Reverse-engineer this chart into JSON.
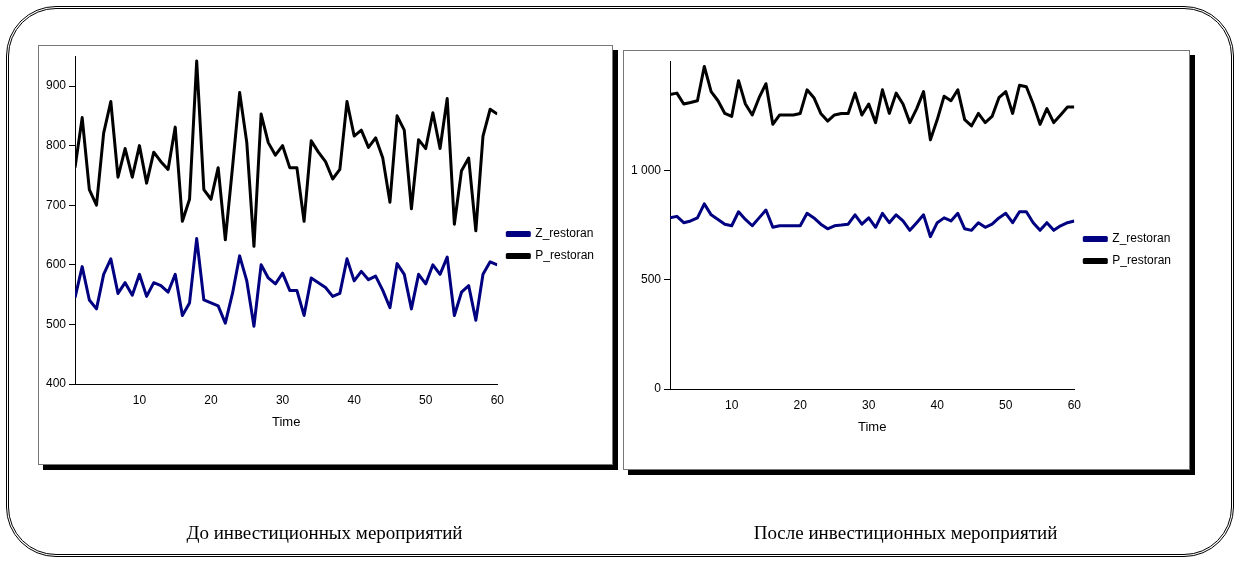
{
  "chart_data": [
    {
      "type": "line",
      "xlabel": "Time",
      "annotations": [
        "До инвестиционных мероприятий"
      ],
      "legend": "right",
      "grid": false,
      "marker": "none",
      "line_style": "solid",
      "x": [
        1,
        2,
        3,
        4,
        5,
        6,
        7,
        8,
        9,
        10,
        11,
        12,
        13,
        14,
        15,
        16,
        17,
        18,
        19,
        20,
        21,
        22,
        23,
        24,
        25,
        26,
        27,
        28,
        29,
        30,
        31,
        32,
        33,
        34,
        35,
        36,
        37,
        38,
        39,
        40,
        41,
        42,
        43,
        44,
        45,
        46,
        47,
        48,
        49,
        50,
        51,
        52,
        53,
        54,
        55,
        56,
        57,
        58,
        59,
        60
      ],
      "xlim": [
        1,
        60
      ],
      "xticks": [
        10,
        20,
        30,
        40,
        50,
        60
      ],
      "ylim": [
        400,
        950
      ],
      "yticks": [
        400,
        500,
        600,
        700,
        800,
        900
      ],
      "series": [
        {
          "name": "Z_restoran",
          "color": "#000080",
          "values": [
            545,
            597,
            541,
            526,
            584,
            610,
            552,
            570,
            549,
            584,
            547,
            570,
            565,
            554,
            584,
            515,
            536,
            644,
            541,
            536,
            531,
            502,
            552,
            615,
            573,
            497,
            600,
            578,
            568,
            586,
            557,
            557,
            515,
            578,
            570,
            562,
            547,
            552,
            610,
            573,
            589,
            575,
            581,
            557,
            528,
            602,
            584,
            526,
            584,
            568,
            600,
            584,
            613,
            515,
            554,
            565,
            507,
            584,
            605,
            600
          ]
        },
        {
          "name": "P_restoran",
          "color": "#000000",
          "values": [
            763,
            847,
            726,
            700,
            821,
            874,
            747,
            795,
            747,
            800,
            737,
            789,
            773,
            760,
            831,
            673,
            710,
            942,
            726,
            710,
            763,
            642,
            763,
            889,
            805,
            631,
            853,
            805,
            784,
            800,
            763,
            763,
            673,
            808,
            789,
            773,
            744,
            760,
            874,
            816,
            826,
            797,
            813,
            779,
            705,
            850,
            826,
            694,
            810,
            795,
            855,
            795,
            879,
            668,
            758,
            779,
            657,
            816,
            861,
            853
          ]
        }
      ]
    },
    {
      "type": "line",
      "xlabel": "Time",
      "annotations": [
        "После инвестиционных мероприятий"
      ],
      "legend": "right",
      "grid": false,
      "marker": "none",
      "line_style": "solid",
      "x": [
        1,
        2,
        3,
        4,
        5,
        6,
        7,
        8,
        9,
        10,
        11,
        12,
        13,
        14,
        15,
        16,
        17,
        18,
        19,
        20,
        21,
        22,
        23,
        24,
        25,
        26,
        27,
        28,
        29,
        30,
        31,
        32,
        33,
        34,
        35,
        36,
        37,
        38,
        39,
        40,
        41,
        42,
        43,
        44,
        45,
        46,
        47,
        48,
        49,
        50,
        51,
        52,
        53,
        54,
        55,
        56,
        57,
        58,
        59,
        60
      ],
      "xlim": [
        1,
        60
      ],
      "xticks": [
        10,
        20,
        30,
        40,
        50,
        60
      ],
      "ylim": [
        0,
        1500
      ],
      "yticks": [
        0,
        500,
        {
          "value": 1000,
          "label": "1 000"
        }
      ],
      "series": [
        {
          "name": "Z_restoran",
          "color": "#000080",
          "values": [
            783,
            790,
            761,
            769,
            783,
            847,
            797,
            776,
            754,
            747,
            811,
            776,
            747,
            783,
            819,
            740,
            747,
            747,
            747,
            747,
            804,
            783,
            754,
            733,
            747,
            750,
            754,
            797,
            754,
            783,
            740,
            804,
            761,
            797,
            769,
            726,
            761,
            797,
            697,
            761,
            783,
            769,
            804,
            733,
            726,
            761,
            740,
            754,
            783,
            804,
            761,
            811,
            811,
            761,
            726,
            761,
            726,
            747,
            761,
            769
          ]
        },
        {
          "name": "P_restoran",
          "color": "#000000",
          "values": [
            1347,
            1354,
            1304,
            1311,
            1319,
            1476,
            1361,
            1319,
            1261,
            1247,
            1411,
            1304,
            1254,
            1333,
            1397,
            1211,
            1254,
            1254,
            1254,
            1261,
            1369,
            1333,
            1261,
            1226,
            1254,
            1261,
            1261,
            1354,
            1254,
            1304,
            1219,
            1369,
            1261,
            1354,
            1304,
            1219,
            1283,
            1361,
            1140,
            1233,
            1340,
            1319,
            1369,
            1233,
            1204,
            1261,
            1219,
            1247,
            1333,
            1361,
            1261,
            1390,
            1383,
            1304,
            1211,
            1283,
            1219,
            1254,
            1290,
            1290
          ]
        }
      ]
    }
  ]
}
